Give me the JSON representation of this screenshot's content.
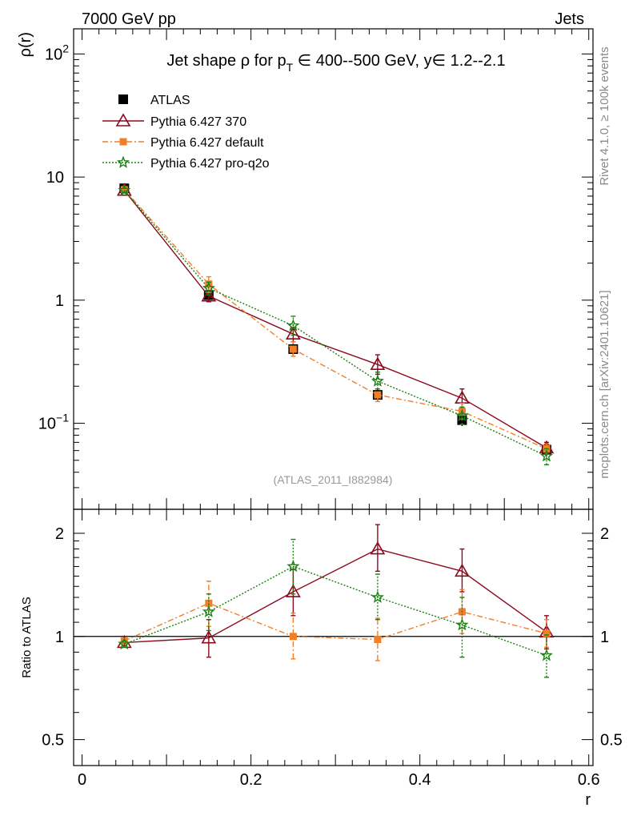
{
  "header": {
    "left_label": "7000 GeV pp",
    "right_label": "Jets"
  },
  "side_labels": {
    "rivet": "Rivet 4.1.0, ≥ 100k events",
    "mcplots": "mcplots.cern.ch [arXiv:2401.10621]"
  },
  "chart_data": [
    {
      "type": "line",
      "panel": "main",
      "title_parts": {
        "prefix": "Jet shape ρ for p",
        "subscript": "T",
        "suffix": " ∈ 400--500 GeV, y∈ 1.2--2.1"
      },
      "ylabel": "ρ(r)",
      "yscale": "log",
      "ylim": [
        0.02,
        160
      ],
      "xlim": [
        -0.01,
        0.605
      ],
      "y_ticks": [
        {
          "value": 100,
          "base": "10",
          "exp": "2"
        },
        {
          "value": 10,
          "base": "10",
          "exp": ""
        },
        {
          "value": 1,
          "base": "1",
          "exp": ""
        },
        {
          "value": 0.1,
          "base": "10",
          "exp": "−1"
        }
      ],
      "analysis_label": "(ATLAS_2011_I882984)",
      "x": [
        0.05,
        0.15,
        0.25,
        0.35,
        0.45,
        0.55
      ],
      "series": [
        {
          "name": "ATLAS",
          "color": "#000000",
          "marker": "square",
          "style": "none",
          "values": [
            8.1,
            1.1,
            0.4,
            0.17,
            0.106,
            0.061
          ],
          "err_lo": [
            7.6,
            0.98,
            0.35,
            0.15,
            0.095,
            0.054
          ],
          "err_hi": [
            8.6,
            1.22,
            0.45,
            0.19,
            0.117,
            0.068
          ]
        },
        {
          "name": "Pythia 6.427 370",
          "color": "#8b0a1e",
          "marker": "triangle-open",
          "style": "solid",
          "values": [
            7.8,
            1.08,
            0.53,
            0.3,
            0.16,
            0.063
          ],
          "err_lo": [
            7.5,
            0.97,
            0.46,
            0.25,
            0.135,
            0.056
          ],
          "err_hi": [
            8.1,
            1.2,
            0.6,
            0.36,
            0.19,
            0.07
          ]
        },
        {
          "name": "Pythia 6.427 default",
          "color": "#f07f28",
          "marker": "square-small",
          "style": "dashdot",
          "values": [
            7.9,
            1.35,
            0.4,
            0.17,
            0.125,
            0.062
          ],
          "err_lo": [
            7.6,
            1.15,
            0.35,
            0.15,
            0.108,
            0.056
          ],
          "err_hi": [
            8.2,
            1.55,
            0.46,
            0.19,
            0.145,
            0.068
          ]
        },
        {
          "name": "Pythia 6.427 pro-q2o",
          "color": "#1a8010",
          "marker": "star",
          "style": "dotted",
          "values": [
            7.8,
            1.25,
            0.62,
            0.22,
            0.115,
            0.054
          ],
          "err_lo": [
            7.5,
            1.1,
            0.52,
            0.19,
            0.098,
            0.046
          ],
          "err_hi": [
            8.1,
            1.4,
            0.74,
            0.26,
            0.135,
            0.062
          ]
        }
      ]
    },
    {
      "type": "line",
      "panel": "ratio",
      "ylabel": "Ratio to ATLAS",
      "xlabel": "r",
      "yscale": "log",
      "ylim": [
        0.42,
        2.35
      ],
      "xlim": [
        -0.01,
        0.605
      ],
      "y_ticks": [
        {
          "value": 2,
          "label": "2"
        },
        {
          "value": 1,
          "label": "1"
        },
        {
          "value": 0.5,
          "label": "0.5"
        }
      ],
      "x_ticks": [
        {
          "value": 0,
          "label": "0"
        },
        {
          "value": 0.2,
          "label": "0.2"
        },
        {
          "value": 0.4,
          "label": "0.4"
        },
        {
          "value": 0.6,
          "label": "0.6"
        }
      ],
      "x": [
        0.05,
        0.15,
        0.25,
        0.35,
        0.45,
        0.55
      ],
      "series": [
        {
          "name": "Pythia 6.427 370",
          "color": "#8b0a1e",
          "marker": "triangle-open",
          "style": "solid",
          "values": [
            0.96,
            0.99,
            1.35,
            1.8,
            1.55,
            1.03
          ],
          "err_lo": [
            0.94,
            0.87,
            1.15,
            1.55,
            1.35,
            0.92
          ],
          "err_hi": [
            0.98,
            1.12,
            1.57,
            2.12,
            1.8,
            1.15
          ]
        },
        {
          "name": "Pythia 6.427 default",
          "color": "#f07f28",
          "marker": "square-small",
          "style": "dashdot",
          "values": [
            0.97,
            1.25,
            1.0,
            0.98,
            1.18,
            1.02
          ],
          "err_lo": [
            0.95,
            1.07,
            0.86,
            0.85,
            1.02,
            0.93
          ],
          "err_hi": [
            0.99,
            1.45,
            1.17,
            1.13,
            1.37,
            1.12
          ]
        },
        {
          "name": "Pythia 6.427 pro-q2o",
          "color": "#1a8010",
          "marker": "star",
          "style": "dotted",
          "values": [
            0.95,
            1.18,
            1.6,
            1.3,
            1.08,
            0.88
          ],
          "err_lo": [
            0.93,
            1.04,
            1.33,
            1.12,
            0.87,
            0.76
          ],
          "err_hi": [
            0.97,
            1.33,
            1.92,
            1.52,
            1.3,
            1.01
          ]
        }
      ]
    }
  ]
}
